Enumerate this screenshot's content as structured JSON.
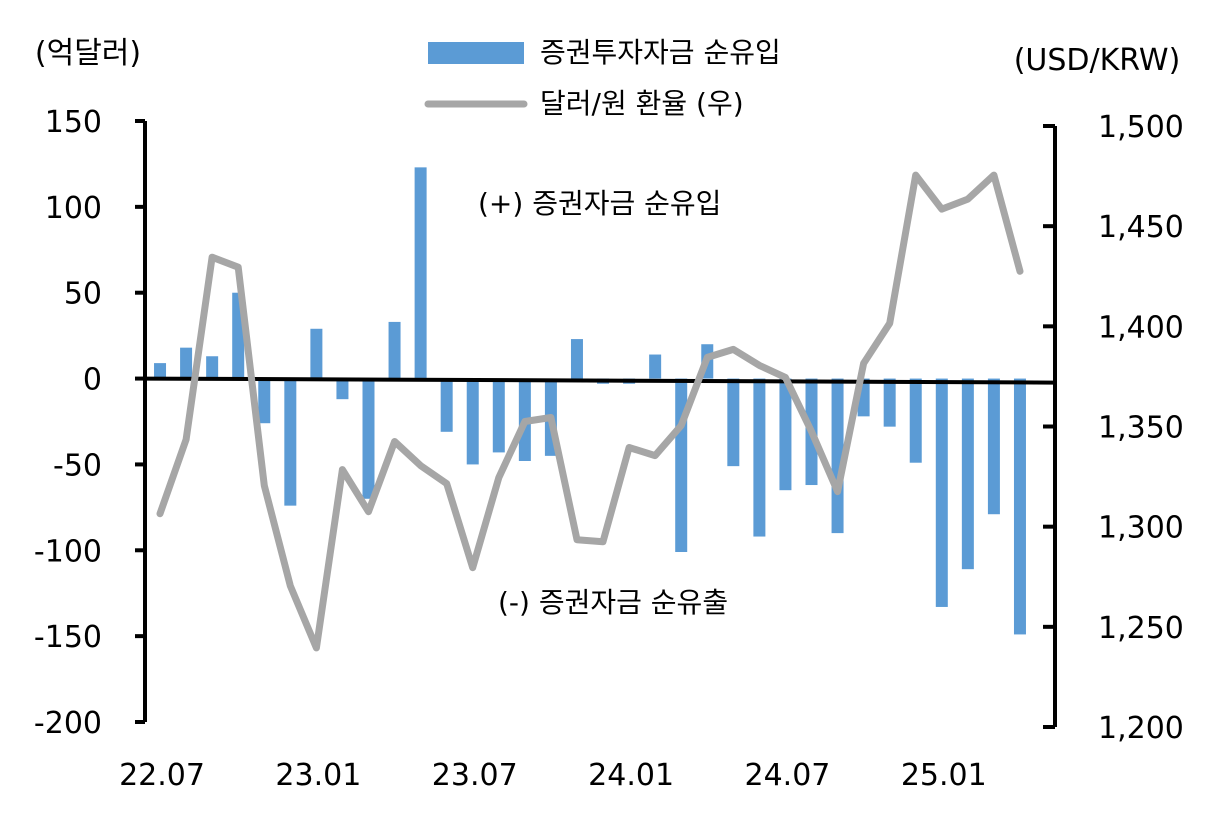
{
  "chart_data": {
    "type": "bar+line",
    "left_axis_unit": "(억달러)",
    "right_axis_unit": "(USD/KRW)",
    "left_ylim": [
      -200,
      150
    ],
    "right_ylim": [
      1200,
      1500
    ],
    "left_ticks": [
      150,
      100,
      50,
      0,
      -50,
      -100,
      -150,
      -200
    ],
    "left_tick_labels": [
      "150",
      "100",
      "50",
      "0",
      "-50",
      "-100",
      "-150",
      "-200"
    ],
    "right_ticks": [
      1500,
      1450,
      1400,
      1350,
      1300,
      1250,
      1200
    ],
    "right_tick_labels": [
      "1,500",
      "1,450",
      "1,400",
      "1,350",
      "1,300",
      "1,250",
      "1,200"
    ],
    "x_tick_labels": [
      "22.07",
      "23.01",
      "23.07",
      "24.01",
      "24.07",
      "25.01"
    ],
    "months": [
      "22.07",
      "22.08",
      "22.09",
      "22.10",
      "22.11",
      "22.12",
      "23.01",
      "23.02",
      "23.03",
      "23.04",
      "23.05",
      "23.06",
      "23.07",
      "23.08",
      "23.09",
      "23.10",
      "23.11",
      "23.12",
      "24.01",
      "24.02",
      "24.03",
      "24.04",
      "24.05",
      "24.06",
      "24.07",
      "24.08",
      "24.09",
      "24.10",
      "24.11",
      "24.12",
      "25.01",
      "25.02",
      "25.03",
      "25.04"
    ],
    "series": [
      {
        "name": "증권투자자금 순유입",
        "type": "bar",
        "axis": "left",
        "color": "#5b9bd5",
        "values": [
          9,
          18,
          13,
          50,
          -26,
          -74,
          29,
          -12,
          -70,
          33,
          123,
          -31,
          -50,
          -43,
          -48,
          -45,
          23,
          -3,
          -3,
          14,
          -101,
          20,
          -51,
          -92,
          -65,
          -62,
          -90,
          -22,
          -28,
          -49,
          -133,
          -111,
          -79,
          -149
        ]
      },
      {
        "name": "달러/원 환율 (우)",
        "type": "line",
        "axis": "right",
        "color": "#a6a6a6",
        "values": [
          1304,
          1341,
          1432,
          1427,
          1318,
          1268,
          1237,
          1326,
          1305,
          1340,
          1328,
          1319,
          1277,
          1322,
          1350,
          1352,
          1291,
          1290,
          1337,
          1333,
          1348,
          1382,
          1386,
          1378,
          1372,
          1345,
          1315,
          1379,
          1399,
          1473,
          1456,
          1461,
          1473,
          1425
        ]
      }
    ],
    "annotations": [
      "(+) 증권자금 순유입",
      "(-) 증권자금 순유출"
    ],
    "legend_position": "top-center",
    "grid": false
  }
}
